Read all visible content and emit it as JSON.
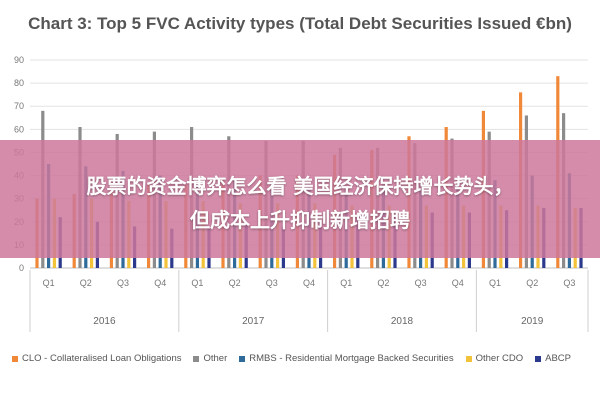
{
  "chart_data": {
    "type": "bar",
    "title": "Chart 3: Top 5 FVC Activity types (Total Debt Securities Issued €bn)",
    "ylim": [
      0,
      90
    ],
    "yticks": [
      "0",
      "10",
      "20",
      "30",
      "40",
      "50",
      "60",
      "70",
      "80",
      "90"
    ],
    "categories": [
      "Q1",
      "Q2",
      "Q3",
      "Q4",
      "Q1",
      "Q2",
      "Q3",
      "Q4",
      "Q1",
      "Q2",
      "Q3",
      "Q4",
      "Q1",
      "Q2",
      "Q3"
    ],
    "groups": [
      {
        "label": "2016",
        "count": 4
      },
      {
        "label": "2017",
        "count": 4
      },
      {
        "label": "2018",
        "count": 4
      },
      {
        "label": "2019",
        "count": 3
      }
    ],
    "series": [
      {
        "name": "CLO - Collateralised Loan Obligations",
        "color": "#f0883a",
        "values": [
          30,
          32,
          34,
          36,
          36,
          38,
          40,
          40,
          49,
          51,
          57,
          61,
          68,
          76,
          83
        ]
      },
      {
        "name": "Other",
        "color": "#8c8c8c",
        "values": [
          68,
          61,
          58,
          59,
          61,
          57,
          55,
          55,
          52,
          52,
          54,
          56,
          59,
          66,
          67
        ]
      },
      {
        "name": "RMBS - Residential Mortgage Backed Securities",
        "color": "#2f6b9a",
        "values": [
          45,
          44,
          42,
          40,
          39,
          38,
          37,
          36,
          35,
          36,
          36,
          37,
          38,
          40,
          41
        ]
      },
      {
        "name": "Other CDO",
        "color": "#f2c23a",
        "values": [
          30,
          30,
          29,
          29,
          29,
          28,
          28,
          28,
          27,
          27,
          27,
          27,
          27,
          27,
          26
        ]
      },
      {
        "name": "ABCP",
        "color": "#2b3a8c",
        "values": [
          22,
          20,
          18,
          17,
          17,
          19,
          18,
          20,
          21,
          22,
          24,
          24,
          25,
          26,
          26
        ]
      }
    ]
  },
  "overlay": {
    "line1": "股票的资金博弈怎么看 美国经济保持增长势头，",
    "line2": "但成本上升抑制新增招聘"
  }
}
